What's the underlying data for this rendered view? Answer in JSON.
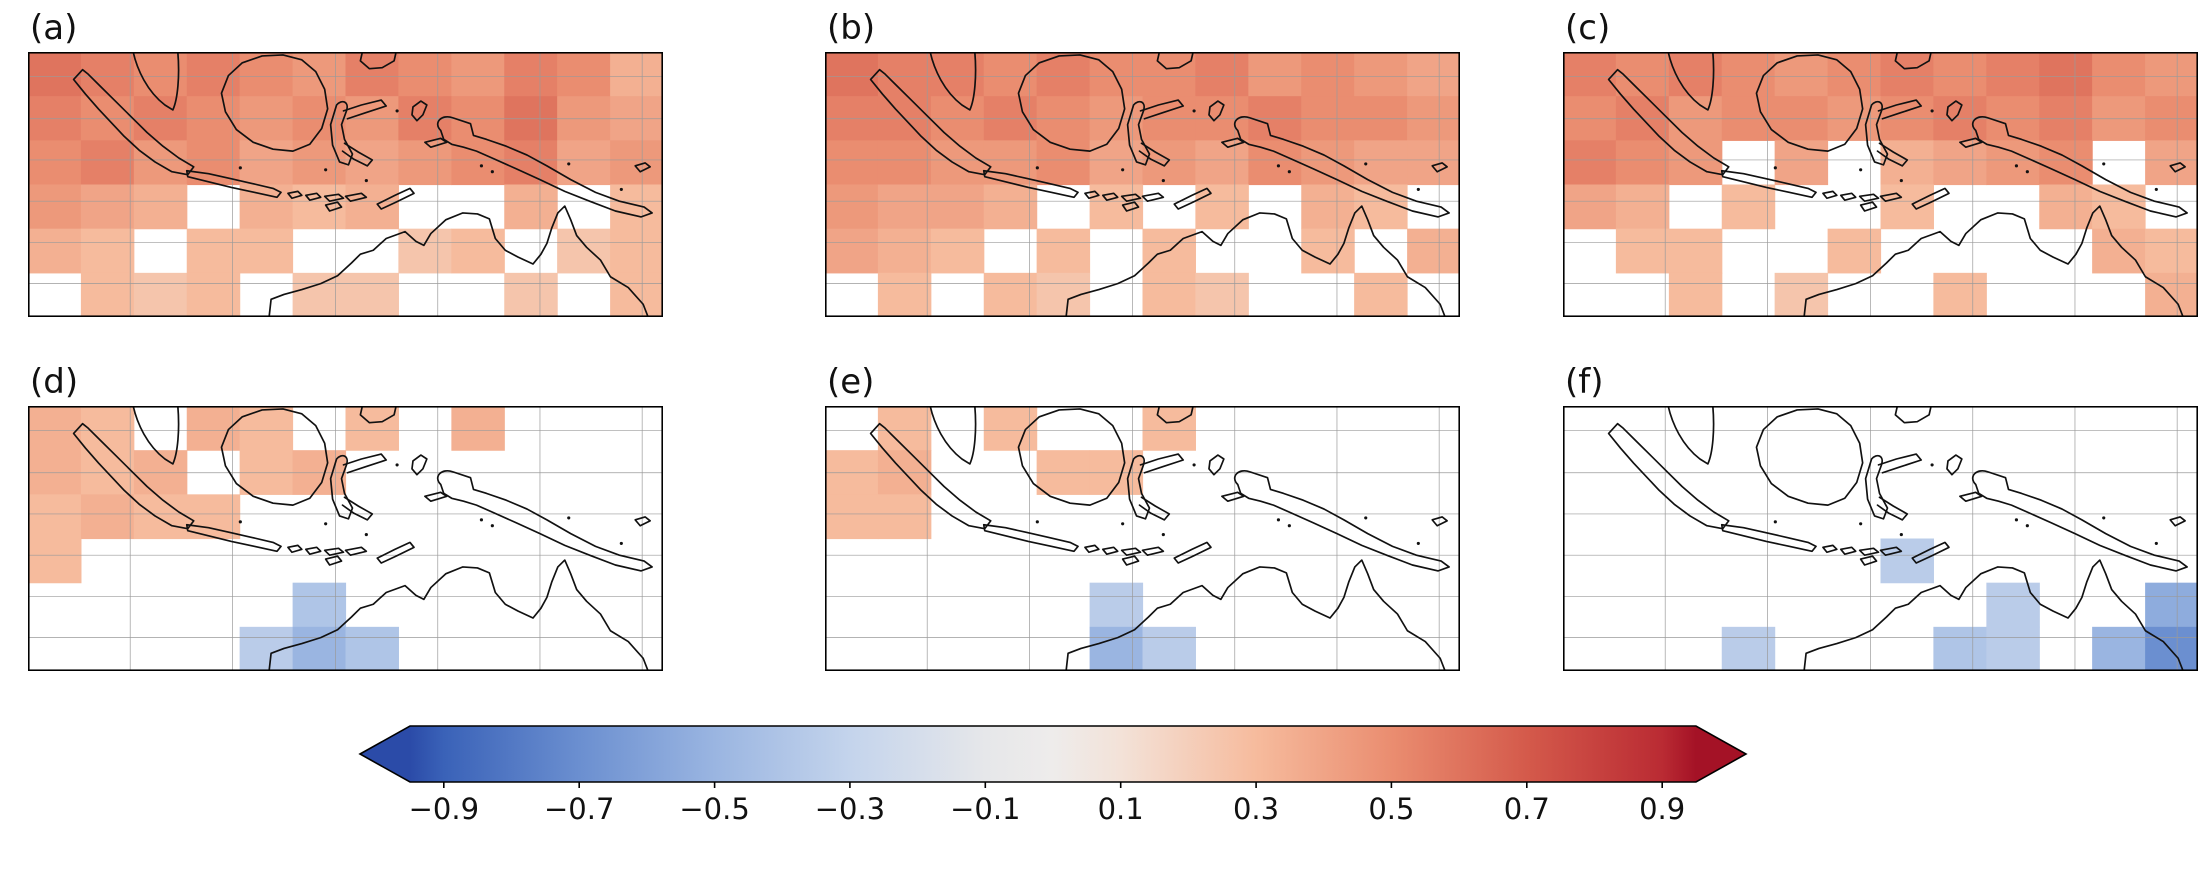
{
  "chart_data": {
    "type": "heatmap",
    "layout": {
      "rows": 2,
      "cols": 3,
      "note": "six correlation map panels over the Maritime Continent and northern Australia sharing one horizontal colorbar",
      "grid_on": true,
      "legend_position": "bottom"
    },
    "grid": {
      "rows": 6,
      "cols": 12
    },
    "panels": [
      {
        "label": "(a)",
        "values": [
          [
            0.6,
            0.55,
            0.5,
            0.55,
            0.5,
            0.45,
            0.55,
            0.5,
            0.45,
            0.55,
            0.5,
            0.35
          ],
          [
            0.55,
            0.5,
            0.55,
            0.5,
            0.45,
            0.5,
            0.45,
            0.55,
            0.5,
            0.6,
            0.45,
            0.4
          ],
          [
            0.5,
            0.55,
            0.45,
            0.5,
            0.4,
            0.45,
            0.4,
            0.45,
            0.5,
            0.55,
            0.4,
            0.45
          ],
          [
            0.45,
            0.4,
            0.35,
            null,
            0.35,
            0.3,
            0.35,
            null,
            null,
            0.35,
            null,
            0.3
          ],
          [
            0.35,
            0.3,
            null,
            0.3,
            0.3,
            null,
            null,
            0.25,
            0.3,
            null,
            0.25,
            0.3
          ],
          [
            null,
            0.3,
            0.25,
            0.3,
            null,
            0.25,
            0.25,
            null,
            null,
            0.25,
            null,
            0.3
          ]
        ]
      },
      {
        "label": "(b)",
        "values": [
          [
            0.6,
            0.55,
            0.55,
            0.5,
            0.55,
            0.5,
            0.5,
            0.55,
            0.45,
            0.5,
            0.45,
            0.4
          ],
          [
            0.55,
            0.55,
            0.5,
            0.55,
            0.5,
            0.45,
            0.5,
            0.5,
            0.55,
            0.5,
            0.5,
            0.45
          ],
          [
            0.5,
            0.5,
            0.45,
            0.45,
            0.5,
            0.4,
            0.45,
            0.4,
            0.5,
            0.45,
            0.4,
            0.4
          ],
          [
            0.45,
            0.4,
            0.4,
            0.35,
            null,
            0.3,
            null,
            0.3,
            null,
            0.35,
            0.3,
            null
          ],
          [
            0.4,
            0.35,
            0.3,
            null,
            0.3,
            null,
            0.3,
            null,
            null,
            0.3,
            null,
            0.35
          ],
          [
            null,
            0.3,
            null,
            0.3,
            0.25,
            null,
            0.3,
            0.25,
            null,
            null,
            0.3,
            null
          ]
        ]
      },
      {
        "label": "(c)",
        "values": [
          [
            0.55,
            0.5,
            0.55,
            0.5,
            0.45,
            0.5,
            0.55,
            0.5,
            0.55,
            0.6,
            0.5,
            0.45
          ],
          [
            0.5,
            0.55,
            0.45,
            0.5,
            0.5,
            0.45,
            0.5,
            0.55,
            0.5,
            0.55,
            0.45,
            0.5
          ],
          [
            0.55,
            0.5,
            0.45,
            null,
            0.4,
            null,
            0.35,
            0.4,
            0.45,
            0.5,
            null,
            0.4
          ],
          [
            0.4,
            0.35,
            null,
            0.3,
            null,
            null,
            0.3,
            null,
            null,
            0.35,
            0.3,
            null
          ],
          [
            null,
            0.3,
            0.3,
            null,
            null,
            0.3,
            null,
            null,
            null,
            null,
            0.35,
            0.3
          ],
          [
            null,
            null,
            0.3,
            null,
            0.25,
            null,
            null,
            0.3,
            null,
            null,
            null,
            0.35
          ]
        ]
      },
      {
        "label": "(d)",
        "values": [
          [
            0.35,
            0.3,
            null,
            0.35,
            0.3,
            null,
            0.3,
            null,
            0.35,
            null,
            null,
            null
          ],
          [
            0.35,
            0.3,
            0.35,
            null,
            0.3,
            0.35,
            null,
            null,
            null,
            null,
            null,
            null
          ],
          [
            0.3,
            0.35,
            0.3,
            0.3,
            null,
            null,
            null,
            null,
            null,
            null,
            null,
            null
          ],
          [
            0.3,
            null,
            null,
            null,
            null,
            null,
            null,
            null,
            null,
            null,
            null,
            null
          ],
          [
            null,
            null,
            null,
            null,
            null,
            -0.4,
            null,
            null,
            null,
            null,
            null,
            null
          ],
          [
            null,
            null,
            null,
            null,
            -0.35,
            -0.5,
            -0.4,
            null,
            null,
            null,
            null,
            null
          ]
        ]
      },
      {
        "label": "(e)",
        "values": [
          [
            null,
            0.3,
            null,
            0.3,
            null,
            null,
            0.3,
            null,
            null,
            null,
            null,
            null
          ],
          [
            0.3,
            0.35,
            null,
            null,
            0.3,
            0.3,
            null,
            null,
            null,
            null,
            null,
            null
          ],
          [
            0.3,
            0.3,
            null,
            null,
            null,
            null,
            null,
            null,
            null,
            null,
            null,
            null
          ],
          [
            null,
            null,
            null,
            null,
            null,
            null,
            null,
            null,
            null,
            null,
            null,
            null
          ],
          [
            null,
            null,
            null,
            null,
            null,
            -0.35,
            null,
            null,
            null,
            null,
            null,
            null
          ],
          [
            null,
            null,
            null,
            null,
            null,
            -0.5,
            -0.35,
            null,
            null,
            null,
            null,
            null
          ]
        ]
      },
      {
        "label": "(f)",
        "values": [
          [
            null,
            null,
            null,
            null,
            null,
            null,
            null,
            null,
            null,
            null,
            null,
            null
          ],
          [
            null,
            null,
            null,
            null,
            null,
            null,
            null,
            null,
            null,
            null,
            null,
            null
          ],
          [
            null,
            null,
            null,
            null,
            null,
            null,
            null,
            null,
            null,
            null,
            null,
            null
          ],
          [
            null,
            null,
            null,
            null,
            null,
            null,
            -0.35,
            null,
            null,
            null,
            null,
            null
          ],
          [
            null,
            null,
            null,
            null,
            null,
            null,
            null,
            null,
            -0.35,
            null,
            null,
            -0.55
          ],
          [
            null,
            null,
            null,
            -0.35,
            null,
            null,
            null,
            -0.4,
            -0.35,
            null,
            -0.5,
            -0.7
          ]
        ]
      }
    ],
    "colorbar": {
      "orientation": "horizontal",
      "extend": "both",
      "vmin": -0.95,
      "vmax": 0.95,
      "tick_labels": [
        "−0.9",
        "−0.7",
        "−0.5",
        "−0.3",
        "−0.1",
        "0.1",
        "0.3",
        "0.5",
        "0.7",
        "0.9"
      ],
      "tick_values": [
        -0.9,
        -0.7,
        -0.5,
        -0.3,
        -0.1,
        0.1,
        0.3,
        0.5,
        0.7,
        0.9
      ],
      "colormap_stops": [
        {
          "value": -1.0,
          "color": "#2b4ba8"
        },
        {
          "value": -0.9,
          "color": "#3a62b8"
        },
        {
          "value": -0.7,
          "color": "#6b8fd0"
        },
        {
          "value": -0.5,
          "color": "#9ab5e1"
        },
        {
          "value": -0.3,
          "color": "#c4d4ec"
        },
        {
          "value": -0.1,
          "color": "#e6e7ea"
        },
        {
          "value": 0.0,
          "color": "#eeeceb"
        },
        {
          "value": 0.1,
          "color": "#f3e2d8"
        },
        {
          "value": 0.3,
          "color": "#f6bb9d"
        },
        {
          "value": 0.5,
          "color": "#ea8d70"
        },
        {
          "value": 0.7,
          "color": "#d45a4b"
        },
        {
          "value": 0.9,
          "color": "#ba2b33"
        },
        {
          "value": 1.0,
          "color": "#a41226"
        }
      ]
    }
  }
}
